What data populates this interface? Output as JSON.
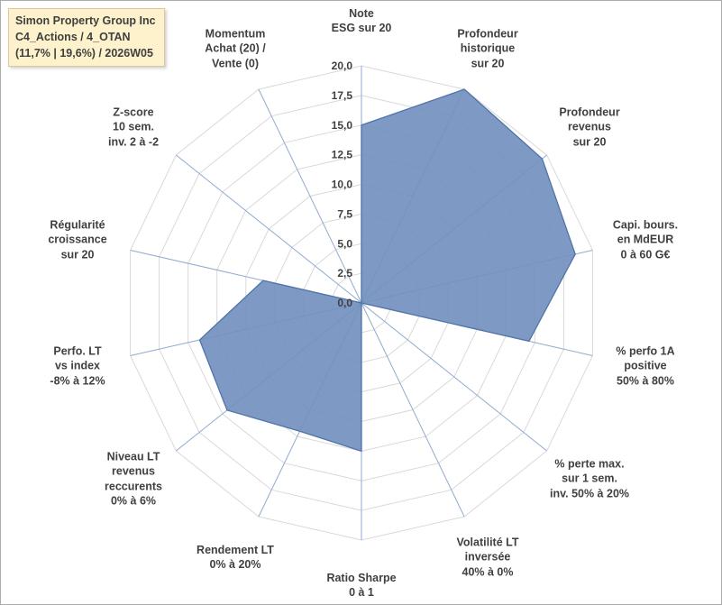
{
  "header": {
    "line1": "Simon Property Group Inc",
    "line2": "C4_Actions / 4_OTAN",
    "line3": "(11,7% | 19,6%) / 2026W05"
  },
  "chart_data": {
    "type": "radar",
    "title": "Simon Property Group Inc C4_Actions / 4_OTAN (11,7% | 19,6%) / 2026W05",
    "rmin": 0,
    "rmax": 20,
    "tick_step": 2.5,
    "tick_labels": [
      "0,0",
      "2,5",
      "5,0",
      "7,5",
      "10,0",
      "12,5",
      "15,0",
      "17,5",
      "20,0"
    ],
    "grid": true,
    "legend": false,
    "axes": [
      {
        "label_lines": [
          "Note",
          "ESG sur 20"
        ],
        "value": 15
      },
      {
        "label_lines": [
          "Profondeur",
          "historique",
          "sur 20"
        ],
        "value": 20
      },
      {
        "label_lines": [
          "Profondeur",
          "revenus",
          "sur 20"
        ],
        "value": 19.5
      },
      {
        "label_lines": [
          "Capi. bours.",
          "en MdEUR",
          "0 à 60 G€"
        ],
        "value": 18.5
      },
      {
        "label_lines": [
          "% perfo 1A",
          "positive",
          "50% à 80%"
        ],
        "value": 14.5
      },
      {
        "label_lines": [
          "% perte max.",
          "sur 1 sem.",
          "inv. 50% à 20%"
        ],
        "value": 0
      },
      {
        "label_lines": [
          "Volatilité LT",
          "inversée",
          "40% à 0%"
        ],
        "value": 0
      },
      {
        "label_lines": [
          "Ratio Sharpe",
          "0 à 1"
        ],
        "value": 12.5
      },
      {
        "label_lines": [
          "Rendement LT",
          "0% à 20%"
        ],
        "value": 12
      },
      {
        "label_lines": [
          "Niveau LT",
          "revenus",
          "reccurents",
          "0% à 6%"
        ],
        "value": 14.5
      },
      {
        "label_lines": [
          "Perfo. LT",
          "vs index",
          "-8% à 12%"
        ],
        "value": 14
      },
      {
        "label_lines": [
          "Régularité",
          "croissance",
          "sur 20"
        ],
        "value": 8.5
      },
      {
        "label_lines": [
          "Z-score",
          "10 sem.",
          "inv. 2 à -2"
        ],
        "value": 0
      },
      {
        "label_lines": [
          "Momentum",
          "Achat (20) /",
          "Vente (0)"
        ],
        "value": 0
      }
    ],
    "colors": {
      "fill": "#7390be",
      "fill_opacity": "0.92",
      "stroke": "#4f74a9",
      "ring": "#d9d9d9",
      "spoke": "#8faad0",
      "label": "#404040"
    }
  }
}
